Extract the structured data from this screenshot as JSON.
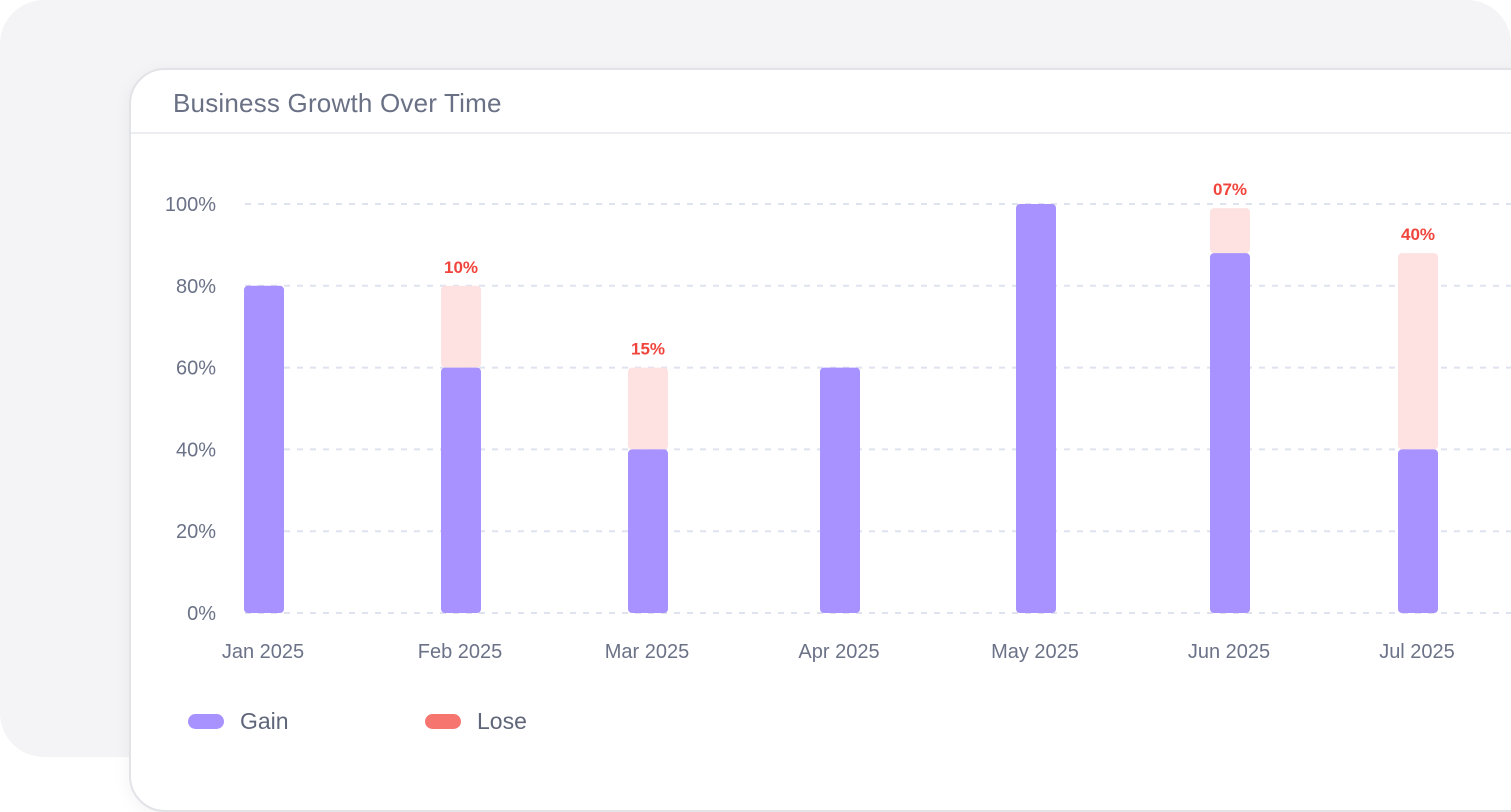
{
  "colors": {
    "gain": "#a792ff",
    "lose_fill": "#fde2e1",
    "lose_label": "#f0453c",
    "lose_legend": "#f6766f",
    "grid": "#dfe2ef",
    "axis_text": "#6b7287"
  },
  "chart_data": {
    "type": "bar",
    "title": "Business Growth Over Time",
    "xlabel": "",
    "ylabel": "",
    "stacked": true,
    "categories": [
      "Jan 2025",
      "Feb 2025",
      "Mar 2025",
      "Apr 2025",
      "May 2025",
      "Jun 2025",
      "Jul 2025"
    ],
    "series": [
      {
        "name": "Gain",
        "values": [
          80,
          60,
          40,
          60,
          100,
          88,
          40
        ]
      },
      {
        "name": "Lose",
        "values": [
          0,
          20,
          20,
          0,
          0,
          11,
          48
        ]
      }
    ],
    "data_labels": [
      "",
      "10%",
      "15%",
      "",
      "",
      "07%",
      "40%"
    ],
    "ylim": [
      0,
      100
    ],
    "yticks": [
      "0%",
      "20%",
      "40%",
      "60%",
      "80%",
      "100%"
    ],
    "grid": true,
    "legend": "bottom-left"
  }
}
